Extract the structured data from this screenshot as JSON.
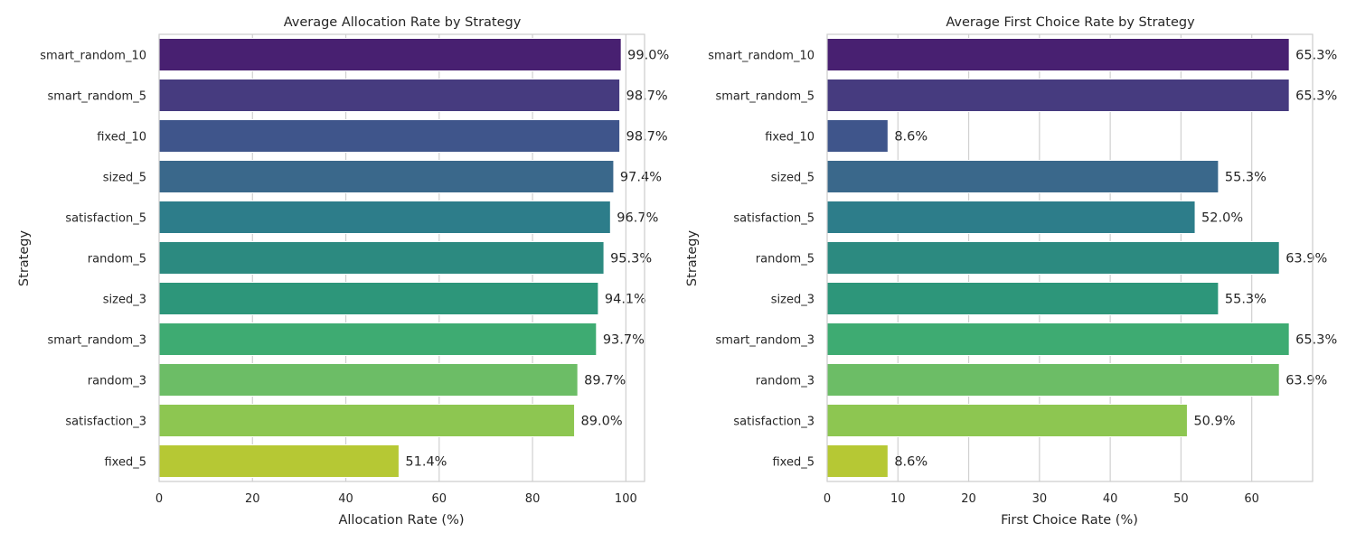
{
  "chart_data": [
    {
      "type": "bar",
      "orientation": "horizontal",
      "title": "Average Allocation Rate by Strategy",
      "xlabel": "Allocation Rate (%)",
      "ylabel": "Strategy",
      "categories": [
        "smart_random_10",
        "smart_random_5",
        "fixed_10",
        "sized_5",
        "satisfaction_5",
        "random_5",
        "sized_3",
        "smart_random_3",
        "random_3",
        "satisfaction_3",
        "fixed_5"
      ],
      "values": [
        99.0,
        98.7,
        98.7,
        97.4,
        96.7,
        95.3,
        94.1,
        93.7,
        89.7,
        89.0,
        51.4
      ],
      "value_labels": [
        "99.0%",
        "98.7%",
        "98.7%",
        "97.4%",
        "96.7%",
        "95.3%",
        "94.1%",
        "93.7%",
        "89.7%",
        "89.0%",
        "51.4%"
      ],
      "xlim": [
        0,
        104
      ],
      "xticks": [
        0,
        20,
        40,
        60,
        80,
        100
      ],
      "grid": "vertical"
    },
    {
      "type": "bar",
      "orientation": "horizontal",
      "title": "Average First Choice Rate by Strategy",
      "xlabel": "First Choice Rate (%)",
      "ylabel": "Strategy",
      "categories": [
        "smart_random_10",
        "smart_random_5",
        "fixed_10",
        "sized_5",
        "satisfaction_5",
        "random_5",
        "sized_3",
        "smart_random_3",
        "random_3",
        "satisfaction_3",
        "fixed_5"
      ],
      "values": [
        65.3,
        65.3,
        8.6,
        55.3,
        52.0,
        63.9,
        55.3,
        65.3,
        63.9,
        50.9,
        8.6
      ],
      "value_labels": [
        "65.3%",
        "65.3%",
        "8.6%",
        "55.3%",
        "52.0%",
        "63.9%",
        "55.3%",
        "65.3%",
        "63.9%",
        "50.9%",
        "8.6%"
      ],
      "xlim": [
        0,
        68.6
      ],
      "xticks": [
        0,
        10,
        20,
        30,
        40,
        50,
        60
      ],
      "grid": "vertical"
    }
  ],
  "colors": [
    "#482071",
    "#463b7f",
    "#3f558b",
    "#3a688b",
    "#2d7d8a",
    "#2c8a80",
    "#2d967a",
    "#3eab72",
    "#6cbd66",
    "#8dc651",
    "#b6c834"
  ]
}
